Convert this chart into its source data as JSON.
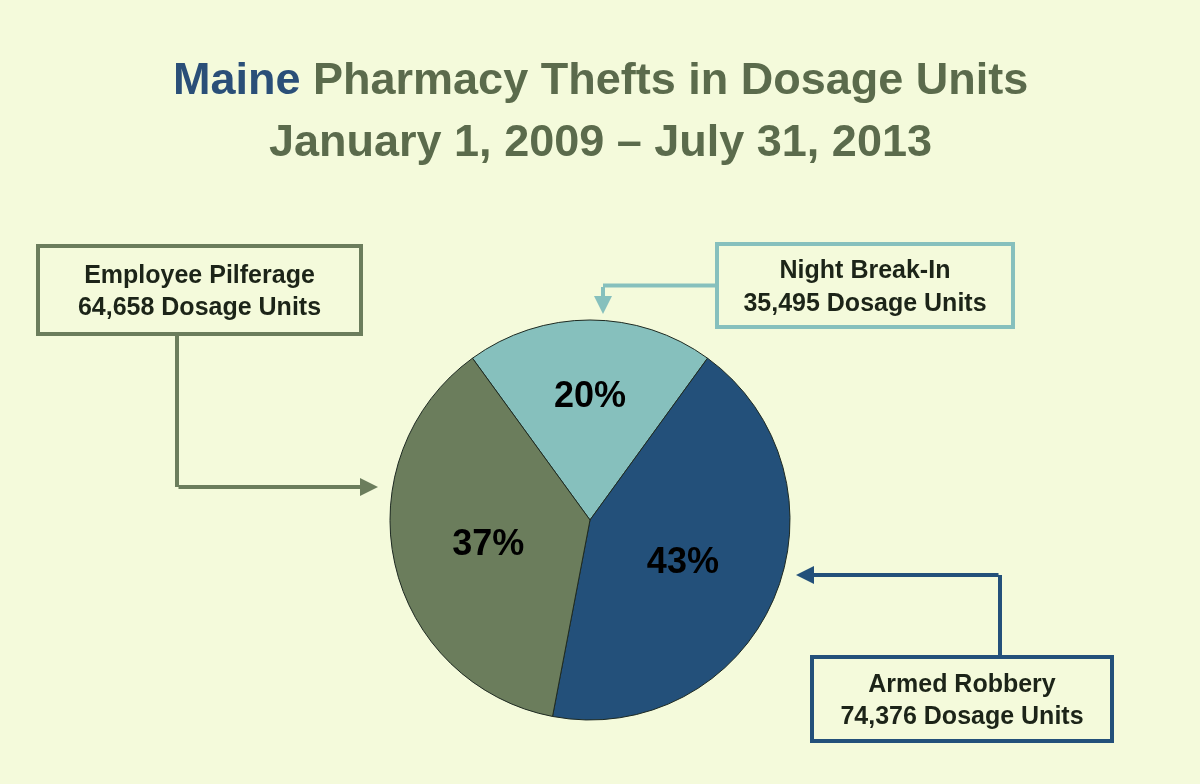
{
  "chart_data": {
    "type": "pie",
    "title": "Maine Pharmacy Thefts in Dosage Units",
    "subtitle": "January 1, 2009 – July 31, 2013",
    "categories": [
      "Night Break-In\n35,495 Dosage Units",
      "Armed Robbery\n74,376 Dosage Units",
      "Employee Pilferage\n64,658 Dosage Units"
    ],
    "values": [
      20,
      43,
      37
    ],
    "value_labels": [
      "20%",
      "43%",
      "37%"
    ],
    "colors": [
      "#86c0bd",
      "#23507a",
      "#6b7d5c"
    ]
  }
}
